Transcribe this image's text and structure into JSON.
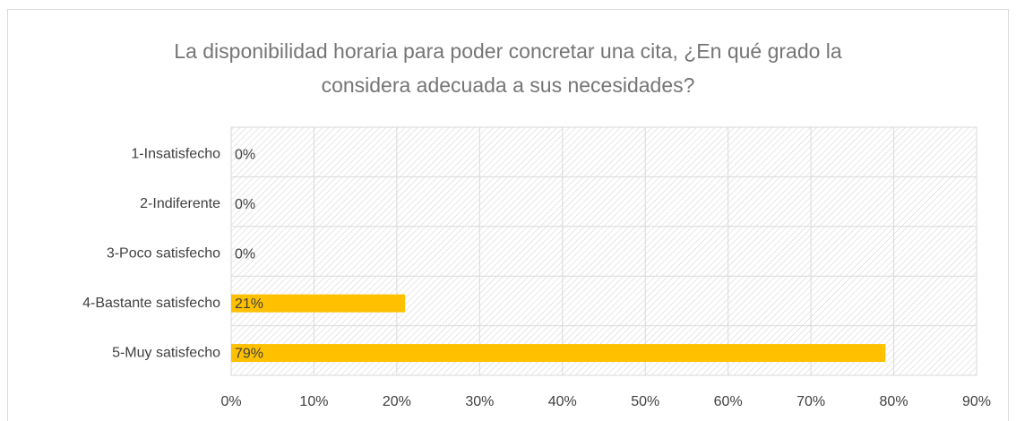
{
  "chart_data": {
    "type": "barh",
    "title": "La disponibilidad horaria para poder concretar una cita, ¿En qué grado la considera adecuada a sus necesidades?",
    "categories": [
      "1-Insatisfecho",
      "2-Indiferente",
      "3-Poco satisfecho",
      "4-Bastante satisfecho",
      "5-Muy satisfecho"
    ],
    "values": [
      0,
      0,
      0,
      21,
      79
    ],
    "value_labels": [
      "0%",
      "0%",
      "0%",
      "21%",
      "79%"
    ],
    "color": "#ffc000",
    "xlim": [
      0,
      90
    ],
    "xticks": [
      {
        "value": 0,
        "label": "0%"
      },
      {
        "value": 10,
        "label": "10%"
      },
      {
        "value": 20,
        "label": "20%"
      },
      {
        "value": 30,
        "label": "30%"
      },
      {
        "value": 40,
        "label": "40%"
      },
      {
        "value": 50,
        "label": "50%"
      },
      {
        "value": 60,
        "label": "60%"
      },
      {
        "value": 70,
        "label": "70%"
      },
      {
        "value": 80,
        "label": "80%"
      },
      {
        "value": 90,
        "label": "90%"
      }
    ],
    "grid": true
  }
}
